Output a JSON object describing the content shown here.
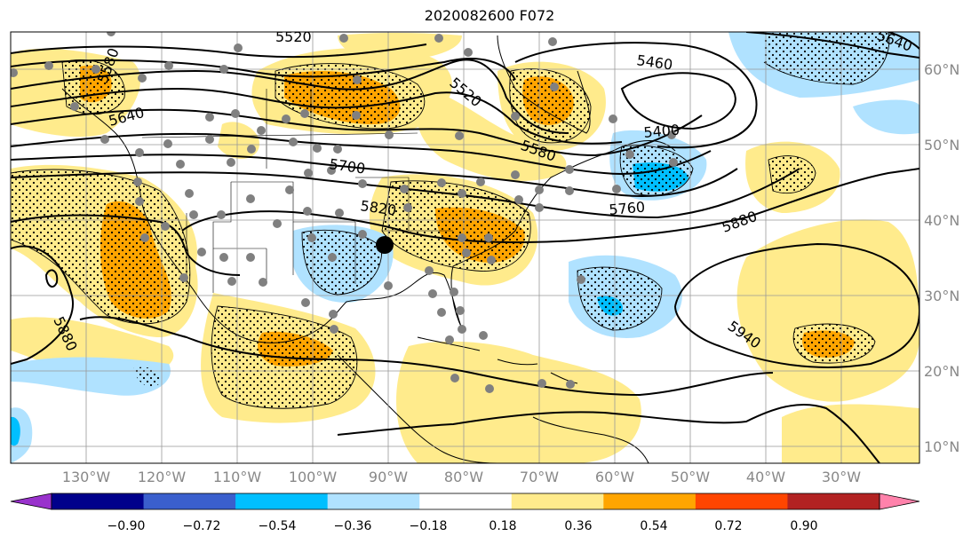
{
  "title": "2020082600 F072",
  "map": {
    "lon_labels": [
      "130°W",
      "120°W",
      "110°W",
      "100°W",
      "90°W",
      "80°W",
      "70°W",
      "60°W",
      "50°W",
      "40°W",
      "30°W"
    ],
    "lat_labels": [
      "60°N",
      "50°N",
      "40°N",
      "30°N",
      "20°N",
      "10°N"
    ]
  },
  "contour_labels": [
    "5520",
    "5580",
    "5640",
    "5460",
    "5520",
    "5400",
    "5580",
    "5700",
    "5760",
    "5820",
    "5880",
    "5880",
    "5940",
    "5640"
  ],
  "colorbar": {
    "ticks": [
      "−0.90",
      "−0.72",
      "−0.54",
      "−0.36",
      "−0.18",
      "0.18",
      "0.36",
      "0.54",
      "0.72",
      "0.90"
    ],
    "colors": [
      "#9932cc",
      "#00008b",
      "#3a5fcd",
      "#00bfff",
      "#b0e2ff",
      "#ffffff",
      "#ffeb8c",
      "#ffa500",
      "#ff4500",
      "#b22222",
      "#ff82ab"
    ]
  }
}
